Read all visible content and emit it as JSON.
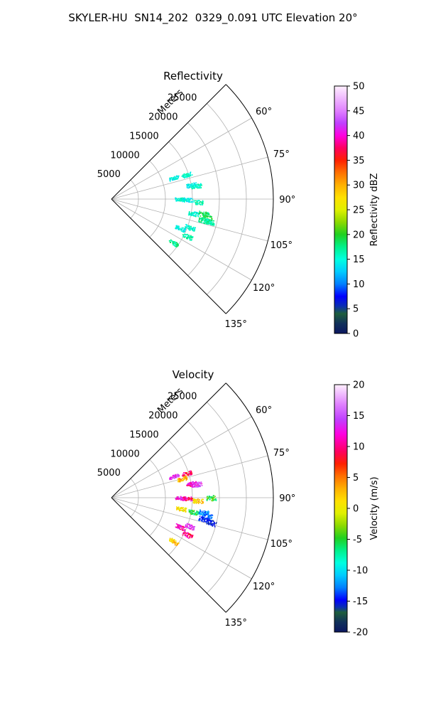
{
  "figure": {
    "title": "SKYLER-HU  SN14_202  0329_0.091 UTC Elevation 20°"
  },
  "colors": {
    "frame": "#000000",
    "grid": "#b0b0b0"
  },
  "chart_data": [
    {
      "type": "scatter",
      "title": "Reflectivity",
      "projection": "polar-sector",
      "angle_range_deg": [
        45,
        135
      ],
      "angle_ticks": [
        "60°",
        "75°",
        "90°",
        "105°",
        "120°",
        "135°"
      ],
      "range_ylim": [
        0,
        30000
      ],
      "range_label": "Meters",
      "range_ticks": [
        "5000",
        "10000",
        "15000",
        "20000",
        "25000"
      ],
      "grid": true,
      "colorbar": {
        "label": "Reflectivity dBZ",
        "min": 0,
        "max": 50,
        "ticks": [
          "0",
          "5",
          "10",
          "15",
          "20",
          "25",
          "30",
          "35",
          "40",
          "45",
          "50"
        ]
      },
      "clusters": [
        {
          "angle": 72,
          "range": 14600,
          "value": 16
        },
        {
          "angle": 71,
          "range": 12200,
          "value": 15
        },
        {
          "angle": 80,
          "range": 15000,
          "value": 15
        },
        {
          "angle": 81,
          "range": 15900,
          "value": 16
        },
        {
          "angle": 90,
          "range": 12700,
          "value": 16
        },
        {
          "angle": 90.5,
          "range": 14000,
          "value": 15
        },
        {
          "angle": 92,
          "range": 16000,
          "value": 17
        },
        {
          "angle": 100,
          "range": 15400,
          "value": 16
        },
        {
          "angle": 99,
          "range": 17300,
          "value": 19
        },
        {
          "angle": 101,
          "range": 18000,
          "value": 20
        },
        {
          "angle": 103,
          "range": 17500,
          "value": 18
        },
        {
          "angle": 103,
          "range": 18600,
          "value": 17
        },
        {
          "angle": 110,
          "range": 15400,
          "value": 16
        },
        {
          "angle": 113,
          "range": 13800,
          "value": 15
        },
        {
          "angle": 116,
          "range": 15600,
          "value": 17
        },
        {
          "angle": 125,
          "range": 14000,
          "value": 18
        }
      ]
    },
    {
      "type": "scatter",
      "title": "Velocity",
      "projection": "polar-sector",
      "angle_range_deg": [
        45,
        135
      ],
      "angle_ticks": [
        "60°",
        "75°",
        "90°",
        "105°",
        "120°",
        "135°"
      ],
      "range_ylim": [
        0,
        30000
      ],
      "range_label": "Meters",
      "range_ticks": [
        "5000",
        "10000",
        "15000",
        "20000",
        "25000"
      ],
      "grid": true,
      "colorbar": {
        "label": "Velocity (m/s)",
        "min": -20,
        "max": 20,
        "ticks": [
          "-20",
          "-15",
          "-10",
          "-5",
          "0",
          "5",
          "10",
          "15",
          "20"
        ]
      },
      "clusters": [
        {
          "angle": 72,
          "range": 14600,
          "value": 10
        },
        {
          "angle": 71,
          "range": 12200,
          "value": 14
        },
        {
          "angle": 75,
          "range": 13500,
          "value": 4
        },
        {
          "angle": 80,
          "range": 15000,
          "value": 12
        },
        {
          "angle": 81,
          "range": 15900,
          "value": 14
        },
        {
          "angle": 90,
          "range": 12700,
          "value": 13
        },
        {
          "angle": 90.5,
          "range": 14000,
          "value": 11
        },
        {
          "angle": 92,
          "range": 16000,
          "value": 3
        },
        {
          "angle": 90,
          "range": 18500,
          "value": -4
        },
        {
          "angle": 99,
          "range": 13000,
          "value": 2
        },
        {
          "angle": 100,
          "range": 15400,
          "value": -4
        },
        {
          "angle": 99,
          "range": 17300,
          "value": -11
        },
        {
          "angle": 101,
          "range": 18000,
          "value": -12
        },
        {
          "angle": 103,
          "range": 17500,
          "value": -14
        },
        {
          "angle": 104,
          "range": 19000,
          "value": -15
        },
        {
          "angle": 110,
          "range": 15400,
          "value": 14
        },
        {
          "angle": 113,
          "range": 13800,
          "value": 12
        },
        {
          "angle": 116,
          "range": 15600,
          "value": 11
        },
        {
          "angle": 125,
          "range": 14000,
          "value": 3
        }
      ]
    }
  ]
}
